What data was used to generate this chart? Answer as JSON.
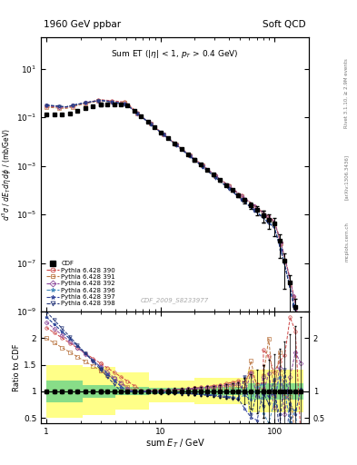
{
  "title": "1960 GeV ppbar",
  "subtitle": "Soft QCD",
  "inner_title": "Sum ET (|\\u03b7| < 1, p_T > 0.4 GeV)",
  "ylabel_main": "d^3\\u03c3 / dE_T d\\u03b7 d\\u03d5 / (mb/GeV)",
  "ylabel_ratio": "Ratio to CDF",
  "xlabel": "sum E_T / GeV",
  "watermark": "CDF_2009_S8233977",
  "ylim_main": [
    1e-09,
    200
  ],
  "ylim_ratio": [
    0.4,
    2.5
  ],
  "xlim": [
    0.9,
    200
  ],
  "green_band_inner": 0.1,
  "yellow_band_outer": 0.3,
  "models": [
    {
      "color": "#cc4444",
      "marker": "o",
      "ls": "--",
      "label": "Pythia 6.428 390"
    },
    {
      "color": "#bb7744",
      "marker": "s",
      "ls": "--",
      "label": "Pythia 6.428 391"
    },
    {
      "color": "#884499",
      "marker": "D",
      "ls": "--",
      "label": "Pythia 6.428 392"
    },
    {
      "color": "#4488bb",
      "marker": "*",
      "ls": "--",
      "label": "Pythia 6.428 396"
    },
    {
      "color": "#334499",
      "marker": "*",
      "ls": "--",
      "label": "Pythia 6.428 397"
    },
    {
      "color": "#223377",
      "marker": "v",
      "ls": "--",
      "label": "Pythia 6.428 398"
    }
  ]
}
